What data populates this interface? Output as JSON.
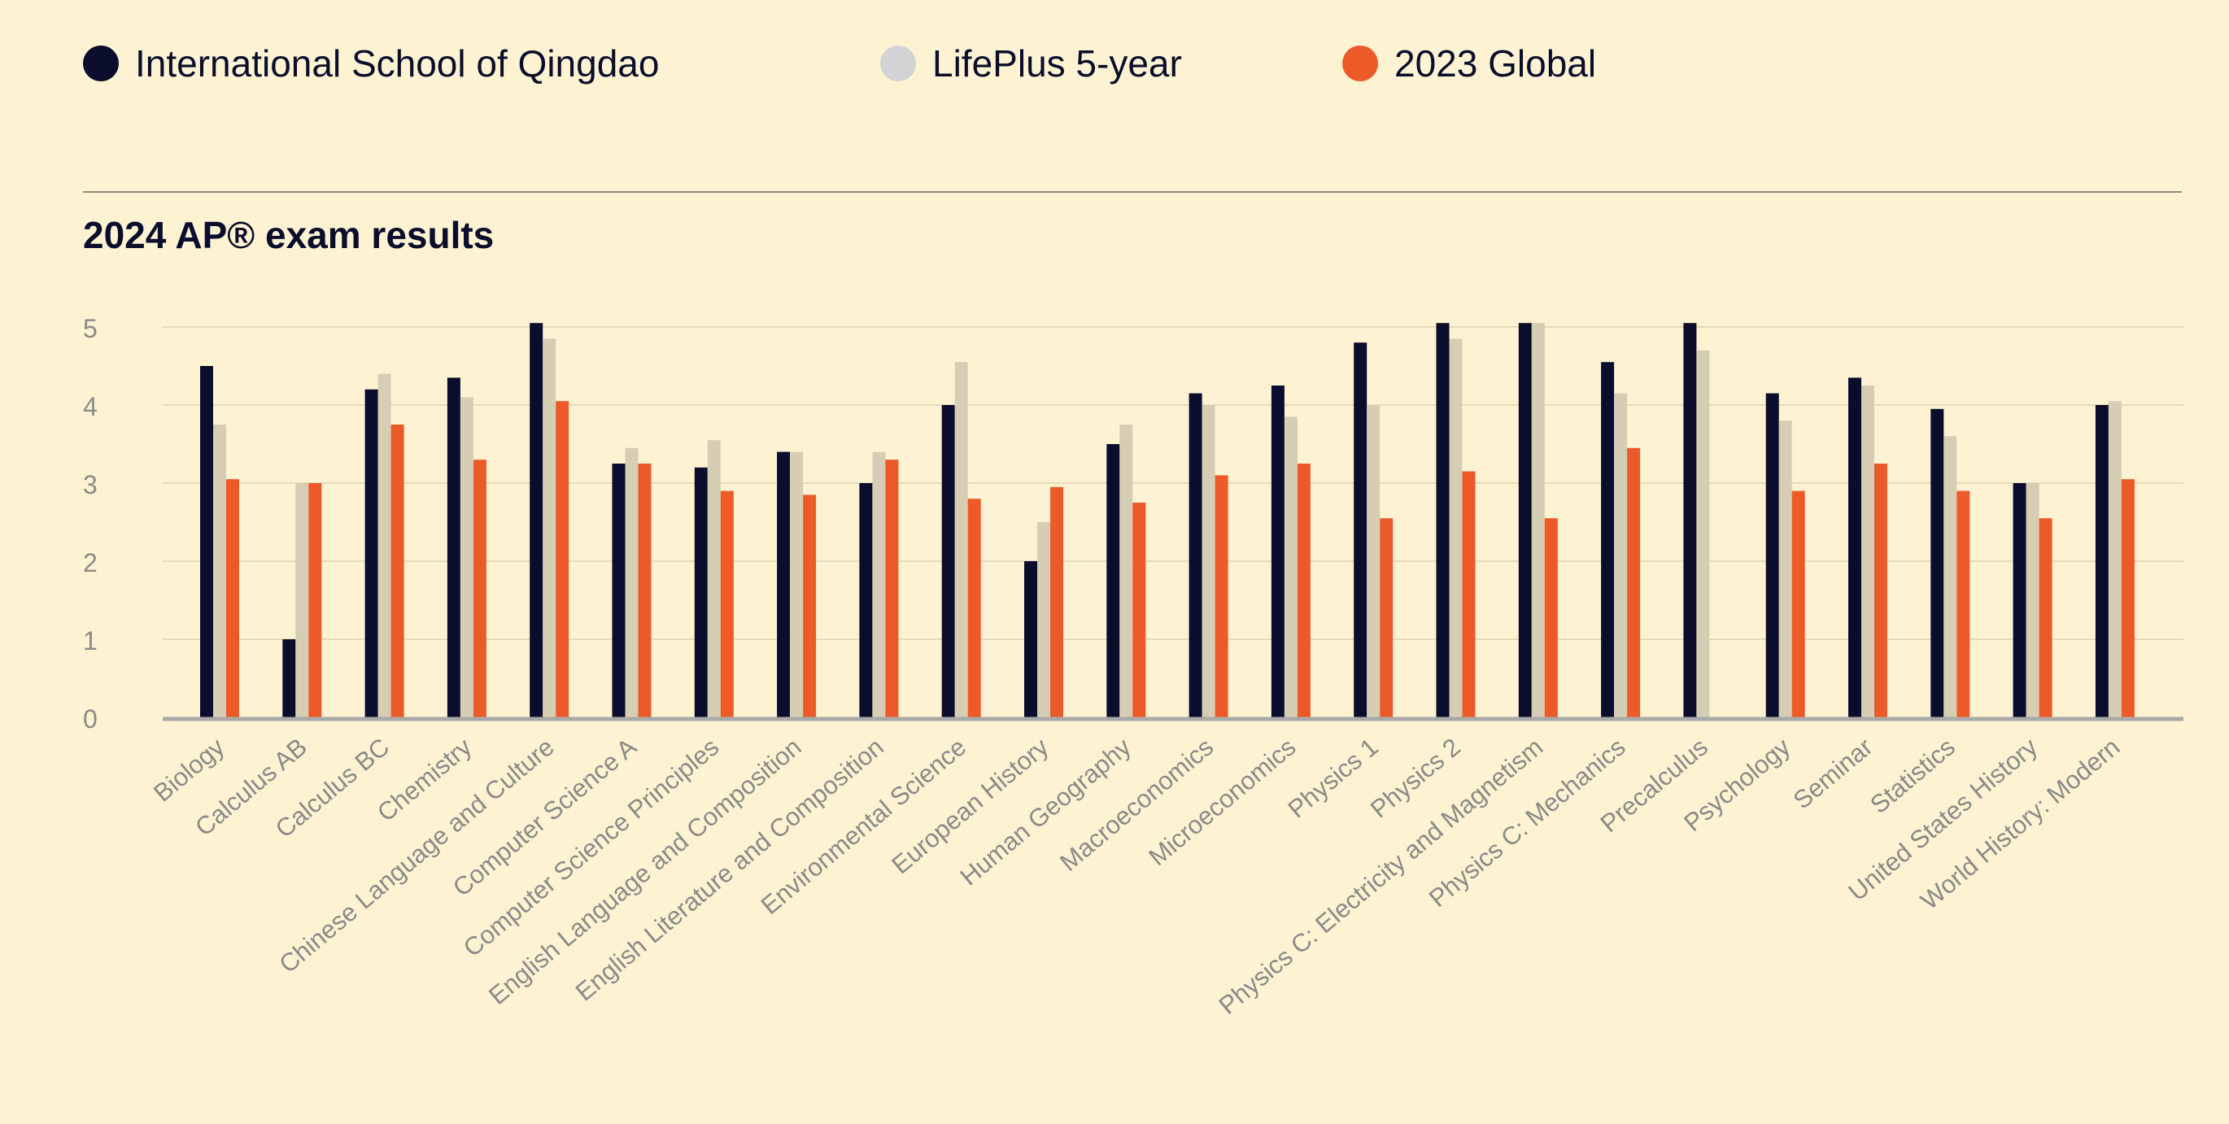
{
  "legend": {
    "items": [
      {
        "label": "International School of Qingdao",
        "color": "#0a0d2b"
      },
      {
        "label": "LifePlus 5-year",
        "color": "#d3d3d6"
      },
      {
        "label": "2023 Global",
        "color": "#ec5a2a"
      }
    ]
  },
  "chart_data": {
    "type": "bar",
    "title": "2024 AP® exam results",
    "xlabel": "",
    "ylabel": "",
    "ylim": [
      0,
      5
    ],
    "yticks": [
      0,
      1,
      2,
      3,
      4,
      5
    ],
    "grid": true,
    "legend_position": "top-left",
    "categories": [
      "Biology",
      "Calculus AB",
      "Calculus BC",
      "Chemistry",
      "Chinese Language and Culture",
      "Computer Science A",
      "Computer Science Principles",
      "English Language and Composition",
      "English Literature and Composition",
      "Environmental Science",
      "European History",
      "Human Geography",
      "Macroeconomics",
      "Microeconomics",
      "Physics 1",
      "Physics 2",
      "Physics C: Electricity and Magnetism",
      "Physics C: Mechanics",
      "Precalculus",
      "Psychology",
      "Seminar",
      "Statistics",
      "United States History",
      "World History: Modern"
    ],
    "series": [
      {
        "name": "International School of Qingdao",
        "color": "#0a0d2b",
        "values": [
          4.5,
          1.0,
          4.2,
          4.35,
          5.05,
          3.25,
          3.2,
          3.4,
          3.0,
          4.0,
          2.0,
          3.5,
          4.15,
          4.25,
          4.8,
          5.05,
          5.05,
          4.55,
          5.05,
          4.15,
          4.35,
          3.95,
          3.0,
          4.0
        ]
      },
      {
        "name": "LifePlus 5-year",
        "color": "#d6ceb4",
        "values": [
          3.75,
          3.0,
          4.4,
          4.1,
          4.85,
          3.45,
          3.55,
          3.4,
          3.4,
          4.55,
          2.5,
          3.75,
          4.0,
          3.85,
          4.0,
          4.85,
          5.05,
          4.15,
          4.7,
          3.8,
          4.25,
          3.6,
          3.0,
          4.05
        ]
      },
      {
        "name": "2023 Global",
        "color": "#ec5a2a",
        "values": [
          3.05,
          3.0,
          3.75,
          3.3,
          4.05,
          3.25,
          2.9,
          2.85,
          3.3,
          2.8,
          2.95,
          2.75,
          3.1,
          3.25,
          2.55,
          3.15,
          2.55,
          3.45,
          null,
          2.9,
          3.25,
          2.9,
          2.55,
          3.05
        ]
      }
    ]
  }
}
